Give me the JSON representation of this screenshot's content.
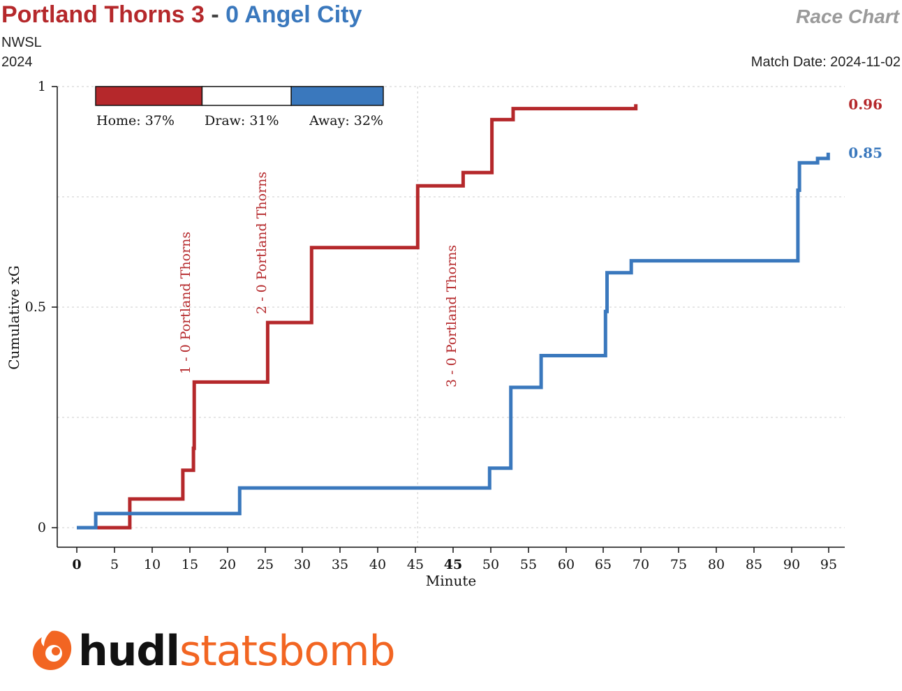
{
  "header": {
    "home_name": "Portland Thorns",
    "home_score": "3",
    "separator": "-",
    "away_score": "0",
    "away_name": "Angel City",
    "league": "NWSL",
    "season": "2024",
    "chart_label": "Race Chart",
    "match_date": "Match Date: 2024-11-02"
  },
  "colors": {
    "home": "#b5282b",
    "away": "#3a78bd",
    "grid": "#cccccc",
    "logo_orange": "#f26522",
    "logo_dark": "#111111"
  },
  "probabilities": {
    "home": {
      "label": "Home: 37%",
      "value": 0.37
    },
    "draw": {
      "label": "Draw: 31%",
      "value": 0.31
    },
    "away": {
      "label": "Away: 32%",
      "value": 0.32
    }
  },
  "chart_data": {
    "type": "line",
    "step": true,
    "xlabel": "Minute",
    "ylabel": "Cumulative xG",
    "xlim": [
      0,
      95
    ],
    "ylim": [
      0,
      1
    ],
    "x_ticks": [
      "0",
      "5",
      "10",
      "15",
      "20",
      "25",
      "30",
      "35",
      "40",
      "45",
      "45",
      "50",
      "55",
      "60",
      "65",
      "70",
      "75",
      "80",
      "85",
      "90",
      "95"
    ],
    "y_ticks": [
      "0",
      "0.5",
      "1"
    ],
    "series": [
      {
        "name": "Portland Thorns",
        "final_label": "0.96",
        "points": [
          [
            0,
            0
          ],
          [
            7,
            0
          ],
          [
            7,
            0.065
          ],
          [
            14,
            0.065
          ],
          [
            14,
            0.13
          ],
          [
            15.4,
            0.13
          ],
          [
            15.4,
            0.18
          ],
          [
            15.5,
            0.18
          ],
          [
            15.5,
            0.33
          ],
          [
            25.2,
            0.33
          ],
          [
            25.2,
            0.465
          ],
          [
            31,
            0.465
          ],
          [
            31,
            0.635
          ],
          [
            45,
            0.635
          ],
          [
            45,
            0.775
          ],
          [
            51,
            0.775
          ],
          [
            51,
            0.805
          ],
          [
            54.8,
            0.805
          ],
          [
            54.8,
            0.925
          ],
          [
            57.6,
            0.925
          ],
          [
            57.6,
            0.95
          ],
          [
            73.8,
            0.95
          ],
          [
            73.8,
            0.96
          ]
        ]
      },
      {
        "name": "Angel City",
        "final_label": "0.85",
        "points": [
          [
            0,
            0
          ],
          [
            2.5,
            0
          ],
          [
            2.5,
            0.032
          ],
          [
            21.5,
            0.032
          ],
          [
            21.5,
            0.09
          ],
          [
            54.5,
            0.09
          ],
          [
            54.5,
            0.135
          ],
          [
            57.3,
            0.135
          ],
          [
            57.3,
            0.318
          ],
          [
            61.3,
            0.318
          ],
          [
            61.3,
            0.39
          ],
          [
            69.8,
            0.39
          ],
          [
            69.8,
            0.49
          ],
          [
            70,
            0.49
          ],
          [
            70,
            0.578
          ],
          [
            73.2,
            0.578
          ],
          [
            73.2,
            0.605
          ],
          [
            95.2,
            0.605
          ],
          [
            95.2,
            0.765
          ],
          [
            95.4,
            0.765
          ],
          [
            95.4,
            0.827
          ],
          [
            97.8,
            0.827
          ],
          [
            97.8,
            0.837
          ],
          [
            99.2,
            0.837
          ],
          [
            99.2,
            0.85
          ]
        ]
      }
    ],
    "goals": [
      {
        "minute": 15.5,
        "label": "1 - 0 Portland Thorns"
      },
      {
        "minute": 25.2,
        "label": "2 - 0 Portland Thorns"
      },
      {
        "minute": 45,
        "label": "3 - 0 Portland Thorns"
      }
    ],
    "half_time_marker": 45,
    "grid": true
  },
  "logo": {
    "text_a": "hudl",
    "text_b": "statsbomb",
    "icon": "statsbomb-flame-icon"
  }
}
